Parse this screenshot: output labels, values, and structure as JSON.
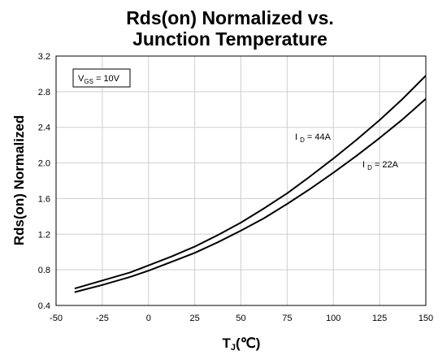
{
  "chart_data": {
    "type": "line",
    "title_line1": "Rds(on) Normalized vs.",
    "title_line2": "Junction Temperature",
    "ylabel": "Rds(on) Normalized",
    "xlabel_main": "T",
    "xlabel_sub": "J",
    "xlabel_unit": "(℃)",
    "xlim": [
      -50,
      150
    ],
    "ylim": [
      0.4,
      3.2
    ],
    "x_ticks": [
      -50,
      -25,
      0,
      25,
      50,
      75,
      100,
      125,
      150
    ],
    "x_tick_labels": [
      "-50",
      "-25",
      "0",
      "25",
      "50",
      "75",
      "100",
      "125",
      "150"
    ],
    "y_ticks": [
      0.4,
      0.8,
      1.2,
      1.6,
      2.0,
      2.4,
      2.8,
      3.2
    ],
    "y_tick_labels": [
      "0.4",
      "0.8",
      "1.2",
      "1.6",
      "2.0",
      "2.4",
      "2.8",
      "3.2"
    ],
    "grid": true,
    "condition_box": {
      "main": "V",
      "sub": "GS",
      "rest": " = 10V"
    },
    "series": [
      {
        "label_main": "I",
        "label_sub": "D",
        "label_rest": " = 44A",
        "x": [
          -40,
          -25,
          -10,
          0,
          12.5,
          25,
          37.5,
          50,
          62.5,
          75,
          87.5,
          100,
          112.5,
          125,
          137.5,
          150
        ],
        "y": [
          0.59,
          0.68,
          0.77,
          0.85,
          0.95,
          1.06,
          1.19,
          1.33,
          1.49,
          1.66,
          1.85,
          2.05,
          2.26,
          2.48,
          2.72,
          2.98
        ]
      },
      {
        "label_main": "I",
        "label_sub": "D",
        "label_rest": " = 22A",
        "x": [
          -40,
          -25,
          -10,
          0,
          12.5,
          25,
          37.5,
          50,
          62.5,
          75,
          87.5,
          100,
          112.5,
          125,
          137.5,
          150
        ],
        "y": [
          0.55,
          0.63,
          0.72,
          0.79,
          0.89,
          0.99,
          1.11,
          1.24,
          1.38,
          1.54,
          1.71,
          1.89,
          2.08,
          2.28,
          2.49,
          2.72
        ]
      }
    ]
  }
}
